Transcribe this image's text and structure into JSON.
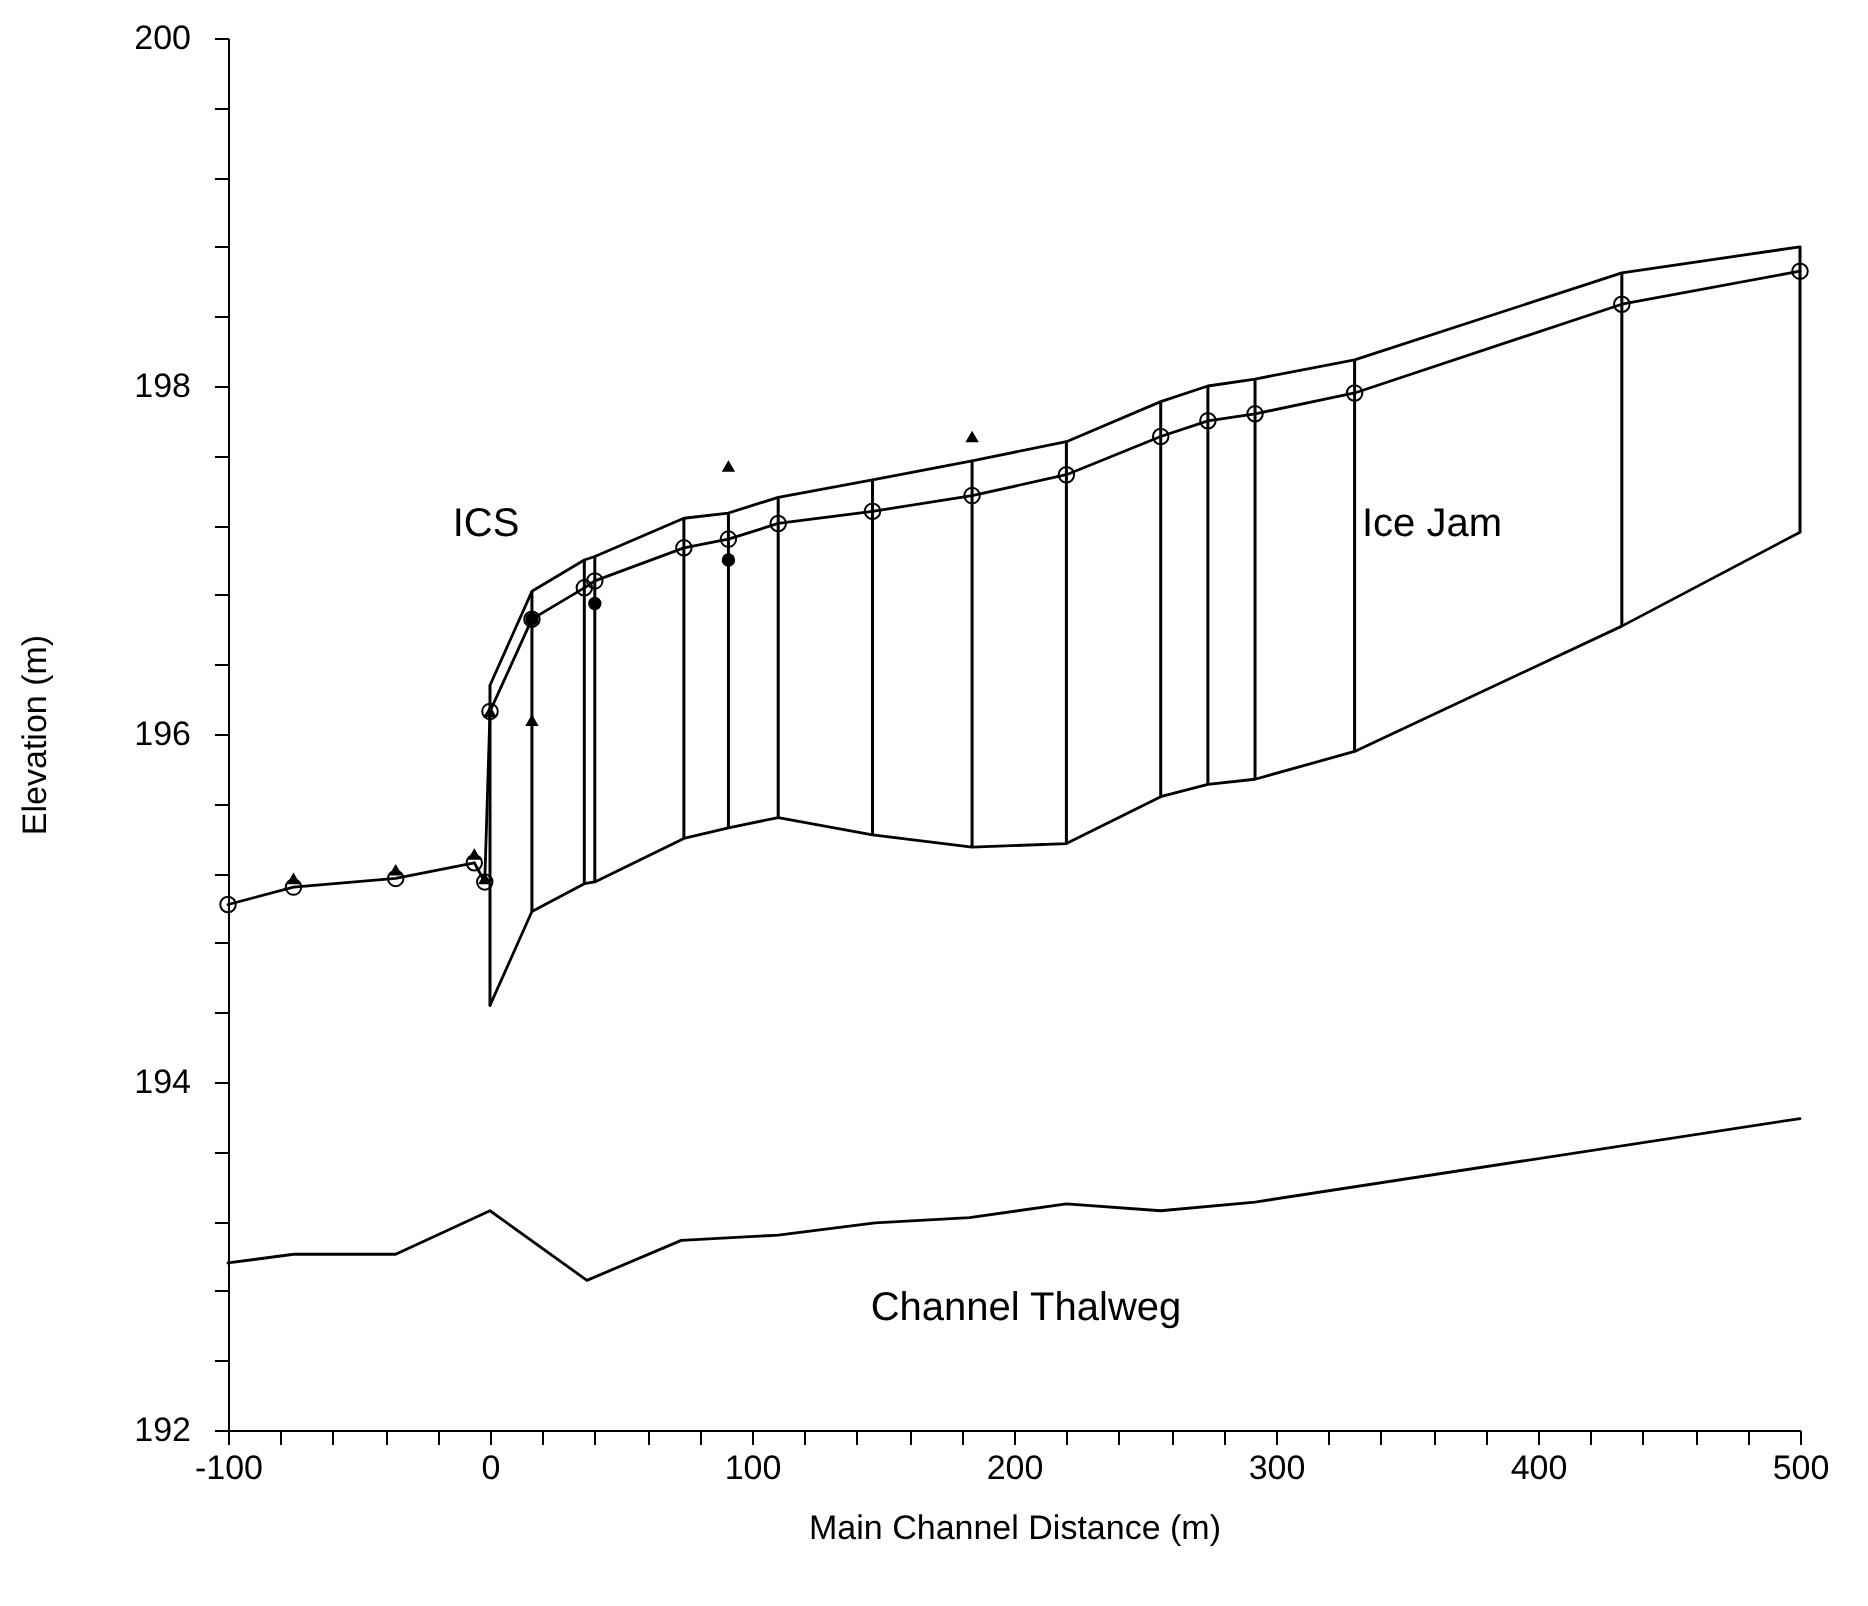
{
  "chart_data": {
    "type": "line",
    "xlabel": "Main Channel Distance (m)",
    "ylabel": "Elevation (m)",
    "xlim": [
      -100,
      500
    ],
    "ylim": [
      192,
      200
    ],
    "xticks": [
      -100,
      {
        "value": -80,
        "label": null
      },
      {
        "value": -60,
        "label": null
      },
      {
        "value": -40,
        "label": null
      },
      {
        "value": -20,
        "label": null
      },
      0,
      {
        "value": 20,
        "label": null
      },
      {
        "value": 40,
        "label": null
      },
      {
        "value": 60,
        "label": null
      },
      {
        "value": 80,
        "label": null
      },
      100,
      {
        "value": 120,
        "label": null
      },
      {
        "value": 140,
        "label": null
      },
      {
        "value": 160,
        "label": null
      },
      {
        "value": 180,
        "label": null
      },
      200,
      {
        "value": 220,
        "label": null
      },
      {
        "value": 240,
        "label": null
      },
      {
        "value": 260,
        "label": null
      },
      {
        "value": 280,
        "label": null
      },
      300,
      {
        "value": 320,
        "label": null
      },
      {
        "value": 340,
        "label": null
      },
      {
        "value": 360,
        "label": null
      },
      {
        "value": 380,
        "label": null
      },
      400,
      {
        "value": 420,
        "label": null
      },
      {
        "value": 440,
        "label": null
      },
      {
        "value": 460,
        "label": null
      },
      {
        "value": 480,
        "label": null
      },
      500
    ],
    "yticks": [
      192,
      {
        "value": 192.4,
        "label": null
      },
      {
        "value": 192.8,
        "label": null
      },
      {
        "value": 193.2,
        "label": null
      },
      {
        "value": 193.6,
        "label": null
      },
      194,
      {
        "value": 194.4,
        "label": null
      },
      {
        "value": 194.8,
        "label": null
      },
      {
        "value": 195.2,
        "label": null
      },
      {
        "value": 195.6,
        "label": null
      },
      196,
      {
        "value": 196.4,
        "label": null
      },
      {
        "value": 196.8,
        "label": null
      },
      {
        "value": 197.2,
        "label": null
      },
      {
        "value": 197.6,
        "label": null
      },
      198,
      {
        "value": 198.4,
        "label": null
      },
      {
        "value": 198.8,
        "label": null
      },
      {
        "value": 199.2,
        "label": null
      },
      {
        "value": 199.6,
        "label": null
      },
      200
    ],
    "series": [
      {
        "type": "bar",
        "color": "#000000",
        "x": [
          0,
          16,
          36,
          40,
          74,
          91,
          110,
          146,
          184,
          220,
          256,
          274,
          292,
          330,
          432,
          500
        ],
        "base": [
          194.44,
          194.98,
          195.14,
          195.15,
          195.4,
          195.46,
          195.52,
          195.42,
          195.35,
          195.37,
          195.64,
          195.71,
          195.74,
          195.9,
          196.62,
          197.16
        ],
        "values": [
          1.84,
          1.84,
          1.86,
          1.87,
          1.84,
          1.81,
          1.84,
          2.04,
          2.22,
          2.31,
          2.27,
          2.29,
          2.3,
          2.25,
          2.03,
          1.64
        ]
      },
      {
        "color": "#000000",
        "marker": "none",
        "x": [
          0,
          16,
          36,
          40,
          74,
          91,
          110,
          146,
          184,
          220,
          256,
          274,
          292,
          330,
          432,
          500
        ],
        "values": [
          196.28,
          196.82,
          197.0,
          197.02,
          197.24,
          197.27,
          197.36,
          197.46,
          197.57,
          197.68,
          197.91,
          198.0,
          198.04,
          198.15,
          198.65,
          198.8
        ]
      },
      {
        "color": "#000000",
        "marker": "none",
        "x": [
          0,
          16,
          36,
          40,
          74,
          91,
          110,
          146,
          184,
          220,
          256,
          274,
          292,
          330,
          432,
          500
        ],
        "values": [
          194.44,
          194.98,
          195.14,
          195.15,
          195.4,
          195.46,
          195.52,
          195.42,
          195.35,
          195.37,
          195.64,
          195.71,
          195.74,
          195.9,
          196.62,
          197.16
        ]
      },
      {
        "color": "#000000",
        "marker": "circle",
        "x": [
          -100,
          -75,
          -36,
          -6,
          -2,
          0,
          16,
          36,
          40,
          74,
          91,
          110,
          146,
          184,
          220,
          256,
          274,
          292,
          330,
          432,
          500
        ],
        "values": [
          195.02,
          195.12,
          195.17,
          195.26,
          195.15,
          196.13,
          196.66,
          196.84,
          196.88,
          197.07,
          197.12,
          197.21,
          197.28,
          197.37,
          197.49,
          197.71,
          197.8,
          197.84,
          197.96,
          198.47,
          198.66
        ]
      },
      {
        "color": "#000000",
        "marker": "none",
        "x": [
          -100,
          -75,
          -36,
          0,
          37,
          73,
          110,
          147,
          183,
          220,
          256,
          292,
          500
        ],
        "values": [
          192.96,
          193.01,
          193.01,
          193.26,
          192.86,
          193.09,
          193.12,
          193.19,
          193.22,
          193.3,
          193.26,
          193.31,
          193.79
        ]
      },
      {
        "type": "scatter",
        "color": "#000000",
        "marker": "triangle",
        "x": [
          -75,
          -36,
          -6,
          -2,
          0
        ],
        "values": [
          195.17,
          195.22,
          195.31,
          195.17,
          196.13
        ]
      },
      {
        "type": "scatter",
        "color": "#000000",
        "marker": "triangle",
        "x": [
          16,
          91,
          184
        ],
        "values": [
          196.08,
          197.54,
          197.71
        ]
      },
      {
        "type": "scatter",
        "color": "#000000",
        "marker": "circle",
        "x": [
          16,
          40,
          91
        ],
        "values": [
          196.66,
          196.75,
          197.0
        ]
      }
    ],
    "annotations": [
      "ICS",
      "Ice Jam",
      "Channel Thalweg"
    ]
  }
}
